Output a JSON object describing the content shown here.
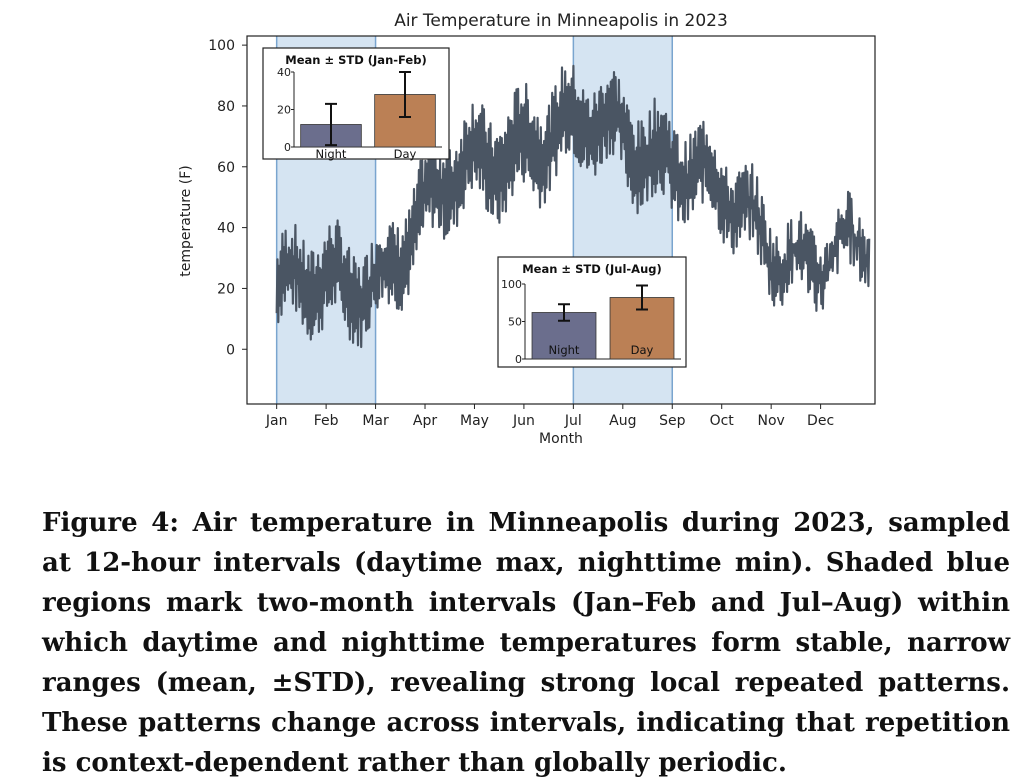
{
  "chart_data": {
    "type": "line",
    "title": "Air Temperature in Minneapolis in 2023",
    "xlabel": "Month",
    "ylabel": "temperature (F)",
    "x_ticks": [
      "Jan",
      "Feb",
      "Mar",
      "Apr",
      "May",
      "Jun",
      "Jul",
      "Aug",
      "Sep",
      "Oct",
      "Nov",
      "Dec"
    ],
    "y_ticks": [
      0,
      20,
      40,
      60,
      80,
      100
    ],
    "ylim": [
      -18,
      103
    ],
    "xlim_months": [
      -0.6,
      12.1
    ],
    "grid": false,
    "line_color": "#4a5563",
    "shade_color": "#d5e4f2",
    "shade_edge_color": "#7aa5cf",
    "shaded_regions": [
      {
        "start_month": 0,
        "end_month": 2
      },
      {
        "start_month": 6,
        "end_month": 8
      }
    ],
    "series": [
      {
        "sample_interval_hours": 12,
        "monthly_profile": [
          {
            "month": "Jan",
            "night": 12,
            "day": 28
          },
          {
            "month": "Feb",
            "night": 8,
            "day": 28
          },
          {
            "month": "Mar",
            "night": 18,
            "day": 34
          },
          {
            "month": "Apr",
            "night": 35,
            "day": 53
          },
          {
            "month": "May",
            "night": 50,
            "day": 70
          },
          {
            "month": "Jun",
            "night": 60,
            "day": 82
          },
          {
            "month": "Jul",
            "night": 62,
            "day": 80
          },
          {
            "month": "Aug",
            "night": 62,
            "day": 80
          },
          {
            "month": "Sep",
            "night": 55,
            "day": 75
          },
          {
            "month": "Oct",
            "night": 40,
            "day": 56
          },
          {
            "month": "Nov",
            "night": 28,
            "day": 42
          },
          {
            "month": "Dec",
            "night": 25,
            "day": 37
          }
        ]
      }
    ],
    "insets": [
      {
        "title": "Mean ± STD (Jan-Feb)",
        "type": "bar",
        "categories": [
          "Night",
          "Day"
        ],
        "values": [
          12,
          28
        ],
        "errors": [
          11,
          12
        ],
        "y_ticks": [
          0,
          20,
          40
        ],
        "ylim": [
          0,
          40
        ],
        "colors": [
          "#6b6e8d",
          "#bb8055"
        ]
      },
      {
        "title": "Mean ± STD (Jul-Aug)",
        "type": "bar",
        "categories": [
          "Night",
          "Day"
        ],
        "values": [
          62,
          82
        ],
        "errors": [
          11,
          16
        ],
        "y_ticks": [
          0,
          50,
          100
        ],
        "ylim": [
          0,
          100
        ],
        "colors": [
          "#6b6e8d",
          "#bb8055"
        ]
      }
    ]
  },
  "caption": "Figure 4: Air temperature in Minneapolis during 2023, sampled at 12-hour intervals (daytime max, nighttime min). Shaded blue regions mark two-month intervals (Jan–Feb and Jul–Aug) within which daytime and nighttime temperatures form stable, narrow ranges (mean, ±STD), revealing strong local repeated patterns. These patterns change across intervals, indicating that repetition is context-dependent rather than globally periodic."
}
